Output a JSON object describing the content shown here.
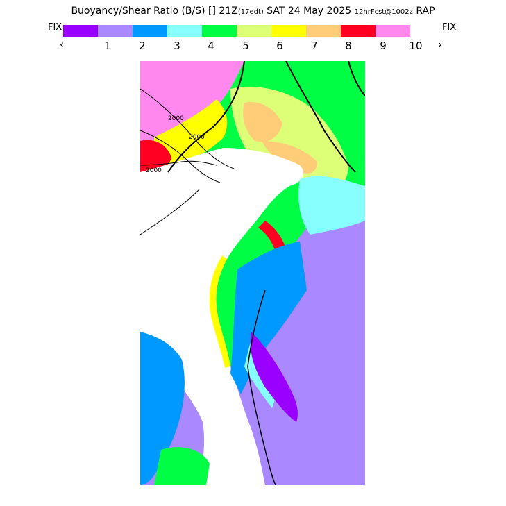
{
  "header": {
    "title_main": "Buoyancy/Shear Ratio (B/S) [] 21Z",
    "title_edt": "(17edt)",
    "title_date": "SAT 24 May 2025",
    "title_fcst": "12hrFcst@1002z",
    "title_model": "RAP"
  },
  "legend": {
    "fix_left": "FIX",
    "fix_right": "FIX",
    "colors": [
      "#9900ff",
      "#aa88ff",
      "#0099ff",
      "#88ffff",
      "#00ff44",
      "#ddff77",
      "#ffff00",
      "#ffcc77",
      "#ff0022",
      "#ff88ee"
    ],
    "ticks": [
      "1",
      "2",
      "3",
      "4",
      "5",
      "6",
      "7",
      "8",
      "9",
      "10"
    ],
    "prev_icon": "chevron-left-icon",
    "next_icon": "chevron-right-icon",
    "prev_label": "‹",
    "next_label": "›"
  },
  "map": {
    "contour_labels": [
      "2000",
      "2000",
      "2000"
    ]
  }
}
